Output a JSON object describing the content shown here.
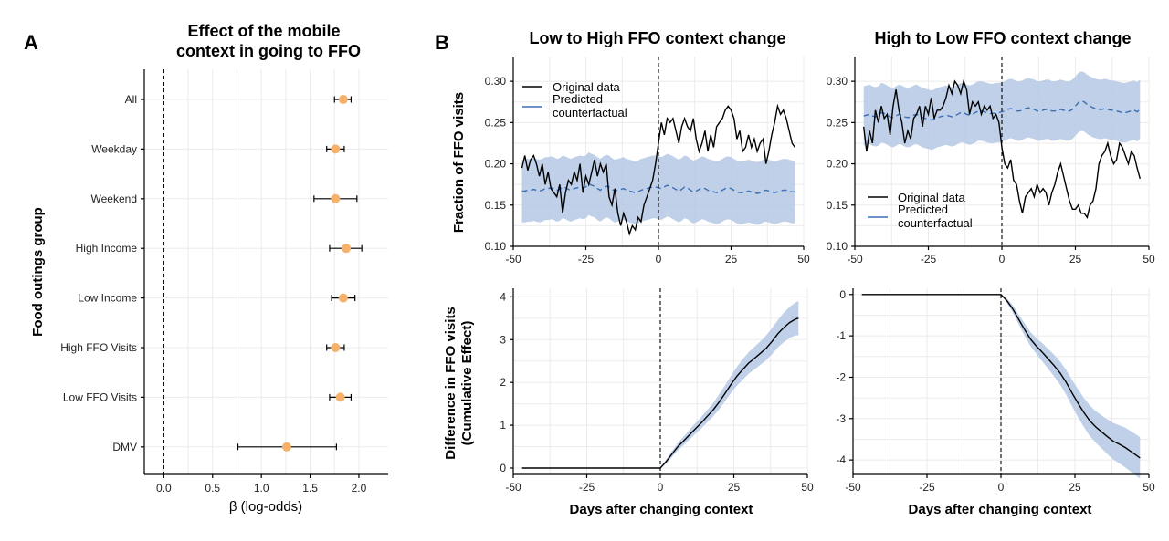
{
  "panel_a": {
    "letter": "A",
    "title_lines": [
      "Effect of the mobile",
      "context in going to FFO"
    ]
  },
  "panel_b": {
    "letter": "B"
  },
  "colors": {
    "point": "#f6b26b",
    "ribbon": "#b8cbe6",
    "predicted_line": "#3b6fb6",
    "line": "#000000"
  },
  "chart_data": [
    {
      "id": "forest",
      "type": "scatter",
      "title": "Effect of the mobile context in going to FFO",
      "xlabel": "β (log-odds)",
      "ylabel": "Food outings group",
      "xlim": [
        -0.2,
        2.3
      ],
      "xticks": [
        0.0,
        0.5,
        1.0,
        1.5,
        2.0
      ],
      "xtick_labels": [
        "0.0",
        "0.5",
        "1.0",
        "1.5",
        "2.0"
      ],
      "reference_line_x": 0,
      "grid": true,
      "categories": [
        "All",
        "Weekday",
        "Weekend",
        "High Income",
        "Low Income",
        "High FFO Visits",
        "Low FFO Visits",
        "DMV"
      ],
      "estimates": [
        1.84,
        1.76,
        1.76,
        1.87,
        1.84,
        1.76,
        1.81,
        1.26
      ],
      "ci_low": [
        1.75,
        1.67,
        1.54,
        1.7,
        1.72,
        1.67,
        1.7,
        0.76
      ],
      "ci_high": [
        1.92,
        1.85,
        1.98,
        2.03,
        1.96,
        1.85,
        1.92,
        1.77
      ]
    },
    {
      "id": "b_top_left",
      "type": "line",
      "title": "Low to High FFO context change",
      "xlabel": "",
      "ylabel": "Fraction of FFO visits",
      "xlim": [
        -50,
        50
      ],
      "ylim": [
        0.1,
        0.33
      ],
      "xticks": [
        -50,
        -25,
        0,
        25,
        50
      ],
      "xtick_labels": [
        "-50",
        "-25",
        "0",
        "25",
        "50"
      ],
      "yticks": [
        0.1,
        0.15,
        0.2,
        0.25,
        0.3
      ],
      "ytick_labels": [
        "0.10",
        "0.15",
        "0.20",
        "0.25",
        "0.30"
      ],
      "vline_x": 0,
      "legend": {
        "placement": "top-left",
        "entries": [
          "Original data",
          "Predicted",
          "counterfactual"
        ]
      },
      "x": [
        -47,
        -46,
        -45,
        -44,
        -43,
        -42,
        -41,
        -40,
        -39,
        -38,
        -37,
        -36,
        -35,
        -34,
        -33,
        -32,
        -31,
        -30,
        -29,
        -28,
        -27,
        -26,
        -25,
        -24,
        -23,
        -22,
        -21,
        -20,
        -19,
        -18,
        -17,
        -16,
        -15,
        -14,
        -13,
        -12,
        -11,
        -10,
        -9,
        -8,
        -7,
        -6,
        -5,
        -4,
        -3,
        -2,
        -1,
        0,
        1,
        2,
        3,
        4,
        5,
        6,
        7,
        8,
        9,
        10,
        11,
        12,
        13,
        14,
        15,
        16,
        17,
        18,
        19,
        20,
        21,
        22,
        23,
        24,
        25,
        26,
        27,
        28,
        29,
        30,
        31,
        32,
        33,
        34,
        35,
        36,
        37,
        38,
        39,
        40,
        41,
        42,
        43,
        44,
        45,
        46,
        47
      ],
      "series": [
        {
          "name": "Original data",
          "values": [
            0.195,
            0.21,
            0.192,
            0.205,
            0.21,
            0.2,
            0.185,
            0.2,
            0.175,
            0.19,
            0.17,
            0.165,
            0.16,
            0.175,
            0.14,
            0.165,
            0.18,
            0.175,
            0.19,
            0.18,
            0.2,
            0.165,
            0.185,
            0.175,
            0.19,
            0.205,
            0.185,
            0.2,
            0.19,
            0.2,
            0.16,
            0.15,
            0.17,
            0.14,
            0.125,
            0.14,
            0.13,
            0.115,
            0.125,
            0.12,
            0.135,
            0.13,
            0.15,
            0.16,
            0.17,
            0.18,
            0.2,
            0.225,
            0.25,
            0.235,
            0.255,
            0.25,
            0.255,
            0.24,
            0.225,
            0.245,
            0.255,
            0.245,
            0.24,
            0.255,
            0.23,
            0.215,
            0.225,
            0.24,
            0.215,
            0.235,
            0.22,
            0.245,
            0.25,
            0.255,
            0.265,
            0.27,
            0.265,
            0.255,
            0.23,
            0.24,
            0.215,
            0.22,
            0.235,
            0.22,
            0.23,
            0.215,
            0.225,
            0.23,
            0.2,
            0.215,
            0.235,
            0.25,
            0.27,
            0.26,
            0.265,
            0.255,
            0.24,
            0.225,
            0.22
          ]
        },
        {
          "name": "Predicted counterfactual",
          "values": [
            0.167,
            0.167,
            0.168,
            0.168,
            0.169,
            0.168,
            0.167,
            0.168,
            0.17,
            0.17,
            0.171,
            0.17,
            0.168,
            0.169,
            0.172,
            0.171,
            0.169,
            0.168,
            0.17,
            0.171,
            0.172,
            0.171,
            0.172,
            0.176,
            0.174,
            0.173,
            0.17,
            0.168,
            0.171,
            0.173,
            0.172,
            0.169,
            0.167,
            0.168,
            0.169,
            0.17,
            0.168,
            0.167,
            0.166,
            0.165,
            0.166,
            0.168,
            0.169,
            0.17,
            0.171,
            0.172,
            0.172,
            0.171,
            0.17,
            0.172,
            0.174,
            0.173,
            0.171,
            0.169,
            0.167,
            0.169,
            0.172,
            0.171,
            0.168,
            0.166,
            0.167,
            0.169,
            0.171,
            0.17,
            0.168,
            0.167,
            0.166,
            0.165,
            0.166,
            0.168,
            0.17,
            0.171,
            0.17,
            0.168,
            0.166,
            0.165,
            0.165,
            0.166,
            0.167,
            0.166,
            0.165,
            0.164,
            0.165,
            0.167,
            0.168,
            0.167,
            0.166,
            0.165,
            0.166,
            0.167,
            0.168,
            0.168,
            0.167,
            0.166,
            0.166
          ]
        }
      ],
      "ribbon": {
        "lower_offset": -0.038,
        "upper_offset": 0.038
      }
    },
    {
      "id": "b_top_right",
      "type": "line",
      "title": "High to Low FFO context change",
      "xlabel": "",
      "ylabel": "",
      "xlim": [
        -50,
        50
      ],
      "ylim": [
        0.1,
        0.33
      ],
      "xticks": [
        -50,
        -25,
        0,
        25,
        50
      ],
      "xtick_labels": [
        "-50",
        "-25",
        "0",
        "25",
        "50"
      ],
      "yticks": [
        0.1,
        0.15,
        0.2,
        0.25,
        0.3
      ],
      "ytick_labels": [
        "0.10",
        "0.15",
        "0.20",
        "0.25",
        "0.30"
      ],
      "vline_x": 0,
      "legend": {
        "placement": "bottom-left",
        "entries": [
          "Original data",
          "Predicted",
          "counterfactual"
        ]
      },
      "x": [
        -47,
        -46,
        -45,
        -44,
        -43,
        -42,
        -41,
        -40,
        -39,
        -38,
        -37,
        -36,
        -35,
        -34,
        -33,
        -32,
        -31,
        -30,
        -29,
        -28,
        -27,
        -26,
        -25,
        -24,
        -23,
        -22,
        -21,
        -20,
        -19,
        -18,
        -17,
        -16,
        -15,
        -14,
        -13,
        -12,
        -11,
        -10,
        -9,
        -8,
        -7,
        -6,
        -5,
        -4,
        -3,
        -2,
        -1,
        0,
        1,
        2,
        3,
        4,
        5,
        6,
        7,
        8,
        9,
        10,
        11,
        12,
        13,
        14,
        15,
        16,
        17,
        18,
        19,
        20,
        21,
        22,
        23,
        24,
        25,
        26,
        27,
        28,
        29,
        30,
        31,
        32,
        33,
        34,
        35,
        36,
        37,
        38,
        39,
        40,
        41,
        42,
        43,
        44,
        45,
        46,
        47
      ],
      "series": [
        {
          "name": "Original data",
          "values": [
            0.245,
            0.215,
            0.24,
            0.225,
            0.265,
            0.25,
            0.27,
            0.255,
            0.26,
            0.235,
            0.27,
            0.29,
            0.265,
            0.25,
            0.225,
            0.24,
            0.23,
            0.255,
            0.26,
            0.27,
            0.245,
            0.27,
            0.26,
            0.28,
            0.255,
            0.265,
            0.265,
            0.27,
            0.28,
            0.295,
            0.285,
            0.3,
            0.295,
            0.285,
            0.3,
            0.29,
            0.26,
            0.275,
            0.27,
            0.275,
            0.26,
            0.27,
            0.265,
            0.27,
            0.255,
            0.26,
            0.25,
            0.22,
            0.2,
            0.195,
            0.205,
            0.18,
            0.175,
            0.155,
            0.14,
            0.16,
            0.165,
            0.17,
            0.16,
            0.175,
            0.165,
            0.17,
            0.165,
            0.15,
            0.165,
            0.175,
            0.19,
            0.2,
            0.185,
            0.17,
            0.155,
            0.145,
            0.145,
            0.15,
            0.14,
            0.14,
            0.135,
            0.15,
            0.155,
            0.17,
            0.2,
            0.21,
            0.215,
            0.225,
            0.21,
            0.2,
            0.205,
            0.225,
            0.22,
            0.21,
            0.2,
            0.215,
            0.21,
            0.195,
            0.182
          ]
        },
        {
          "name": "Predicted counterfactual",
          "values": [
            0.258,
            0.259,
            0.26,
            0.258,
            0.257,
            0.258,
            0.262,
            0.261,
            0.259,
            0.257,
            0.256,
            0.258,
            0.26,
            0.259,
            0.257,
            0.256,
            0.257,
            0.259,
            0.26,
            0.258,
            0.256,
            0.255,
            0.254,
            0.253,
            0.254,
            0.256,
            0.257,
            0.258,
            0.259,
            0.258,
            0.257,
            0.258,
            0.26,
            0.262,
            0.262,
            0.26,
            0.259,
            0.26,
            0.262,
            0.264,
            0.264,
            0.263,
            0.262,
            0.261,
            0.261,
            0.262,
            0.262,
            0.263,
            0.264,
            0.266,
            0.267,
            0.266,
            0.264,
            0.264,
            0.265,
            0.267,
            0.268,
            0.267,
            0.266,
            0.264,
            0.264,
            0.265,
            0.266,
            0.266,
            0.264,
            0.264,
            0.265,
            0.266,
            0.265,
            0.264,
            0.264,
            0.266,
            0.27,
            0.274,
            0.276,
            0.275,
            0.272,
            0.27,
            0.268,
            0.267,
            0.266,
            0.266,
            0.267,
            0.266,
            0.265,
            0.265,
            0.264,
            0.263,
            0.262,
            0.262,
            0.263,
            0.264,
            0.265,
            0.263,
            0.266
          ]
        }
      ],
      "ribbon": {
        "lower_offset": -0.036,
        "upper_offset": 0.036
      }
    },
    {
      "id": "b_bottom_left",
      "type": "area",
      "title": "",
      "xlabel": "Days after changing context",
      "ylabel_lines": [
        "Difference in FFO visits",
        "(Cumulative Effect)"
      ],
      "xlim": [
        -50,
        50
      ],
      "ylim": [
        -0.15,
        4.2
      ],
      "xticks": [
        -50,
        -25,
        0,
        25,
        50
      ],
      "xtick_labels": [
        "-50",
        "-25",
        "0",
        "25",
        "50"
      ],
      "yticks": [
        0,
        1,
        2,
        3,
        4
      ],
      "ytick_labels": [
        "0",
        "1",
        "2",
        "3",
        "4"
      ],
      "vline_x": 0,
      "x": [
        -47,
        0,
        2,
        4,
        6,
        8,
        10,
        12,
        14,
        16,
        18,
        20,
        22,
        24,
        26,
        28,
        30,
        32,
        34,
        36,
        38,
        40,
        42,
        44,
        46,
        47
      ],
      "series": [
        {
          "name": "Cumulative effect",
          "values": [
            0,
            0,
            0.15,
            0.33,
            0.5,
            0.64,
            0.78,
            0.92,
            1.06,
            1.21,
            1.36,
            1.54,
            1.74,
            1.95,
            2.14,
            2.3,
            2.45,
            2.56,
            2.68,
            2.8,
            2.96,
            3.14,
            3.28,
            3.4,
            3.48,
            3.5
          ]
        }
      ],
      "ribbon_lower": [
        0,
        0,
        0.1,
        0.26,
        0.41,
        0.54,
        0.67,
        0.8,
        0.93,
        1.07,
        1.21,
        1.37,
        1.56,
        1.75,
        1.92,
        2.06,
        2.2,
        2.3,
        2.41,
        2.52,
        2.66,
        2.82,
        2.94,
        3.04,
        3.1,
        3.1
      ],
      "ribbon_upper": [
        0,
        0,
        0.2,
        0.4,
        0.59,
        0.74,
        0.9,
        1.05,
        1.2,
        1.36,
        1.52,
        1.72,
        1.93,
        2.15,
        2.36,
        2.54,
        2.7,
        2.83,
        2.96,
        3.1,
        3.27,
        3.46,
        3.63,
        3.77,
        3.87,
        3.9
      ]
    },
    {
      "id": "b_bottom_right",
      "type": "area",
      "title": "",
      "xlabel": "Days after changing context",
      "ylabel": "",
      "xlim": [
        -50,
        50
      ],
      "ylim": [
        -4.35,
        0.15
      ],
      "xticks": [
        -50,
        -25,
        0,
        25,
        50
      ],
      "xtick_labels": [
        "-50",
        "-25",
        "0",
        "25",
        "50"
      ],
      "yticks": [
        0,
        -1,
        -2,
        -3,
        -4
      ],
      "ytick_labels": [
        "0",
        "-1",
        "-2",
        "-3",
        "-4"
      ],
      "vline_x": 0,
      "x": [
        -47,
        0,
        2,
        4,
        6,
        8,
        10,
        12,
        14,
        16,
        18,
        20,
        22,
        24,
        26,
        28,
        30,
        32,
        34,
        36,
        38,
        40,
        42,
        44,
        46,
        47
      ],
      "series": [
        {
          "name": "Cumulative effect",
          "values": [
            0,
            0,
            -0.15,
            -0.35,
            -0.6,
            -0.85,
            -1.08,
            -1.25,
            -1.4,
            -1.56,
            -1.72,
            -1.9,
            -2.12,
            -2.38,
            -2.62,
            -2.85,
            -3.05,
            -3.2,
            -3.32,
            -3.44,
            -3.55,
            -3.62,
            -3.7,
            -3.8,
            -3.9,
            -3.95
          ]
        }
      ],
      "ribbon_lower": [
        0,
        0,
        -0.2,
        -0.44,
        -0.72,
        -1.0,
        -1.25,
        -1.44,
        -1.62,
        -1.8,
        -1.98,
        -2.18,
        -2.42,
        -2.7,
        -2.96,
        -3.2,
        -3.42,
        -3.58,
        -3.72,
        -3.86,
        -3.99,
        -4.08,
        -4.18,
        -4.29,
        -4.4,
        -4.45
      ],
      "ribbon_upper": [
        0,
        0,
        -0.1,
        -0.26,
        -0.48,
        -0.7,
        -0.91,
        -1.06,
        -1.18,
        -1.32,
        -1.46,
        -1.62,
        -1.82,
        -2.06,
        -2.28,
        -2.5,
        -2.68,
        -2.82,
        -2.92,
        -3.02,
        -3.11,
        -3.16,
        -3.22,
        -3.31,
        -3.4,
        -3.45
      ]
    }
  ]
}
